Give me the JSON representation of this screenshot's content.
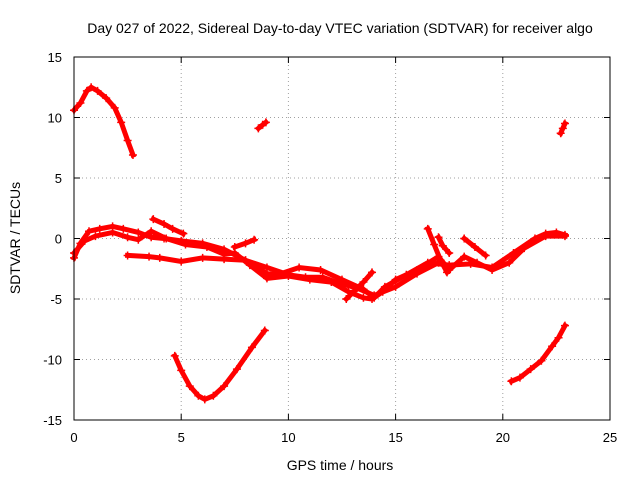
{
  "chart_data": {
    "type": "scatter",
    "title": "Day 027 of 2022, Sidereal Day-to-day VTEC variation (SDTVAR) for receiver algo",
    "xlabel": "GPS time / hours",
    "ylabel": "SDTVAR / TECUs",
    "xlim": [
      0,
      25
    ],
    "ylim": [
      -15,
      15
    ],
    "xticks": [
      0,
      5,
      10,
      15,
      20,
      25
    ],
    "yticks": [
      -15,
      -10,
      -5,
      0,
      5,
      10,
      15
    ],
    "grid": true,
    "marker": "plus",
    "color": "#ff0000",
    "series": [
      {
        "name": "arc-top-left",
        "points": [
          [
            0.0,
            10.6
          ],
          [
            0.3,
            11.2
          ],
          [
            0.6,
            12.2
          ],
          [
            0.8,
            12.5
          ],
          [
            1.1,
            12.2
          ],
          [
            1.5,
            11.6
          ],
          [
            1.9,
            10.8
          ],
          [
            2.2,
            9.6
          ],
          [
            2.5,
            8.1
          ],
          [
            2.75,
            6.9
          ]
        ]
      },
      {
        "name": "short-top-mid",
        "points": [
          [
            8.6,
            9.1
          ],
          [
            8.8,
            9.4
          ],
          [
            8.95,
            9.6
          ]
        ]
      },
      {
        "name": "short-top-right",
        "points": [
          [
            22.7,
            8.7
          ],
          [
            22.8,
            9.1
          ],
          [
            22.9,
            9.5
          ]
        ]
      },
      {
        "name": "dip-mid",
        "points": [
          [
            4.7,
            -9.7
          ],
          [
            5.0,
            -10.9
          ],
          [
            5.4,
            -12.2
          ],
          [
            5.8,
            -13.0
          ],
          [
            6.1,
            -13.3
          ],
          [
            6.5,
            -13.0
          ],
          [
            7.0,
            -12.2
          ],
          [
            7.6,
            -10.8
          ],
          [
            8.3,
            -9.0
          ],
          [
            8.9,
            -7.6
          ]
        ]
      },
      {
        "name": "rise-right",
        "points": [
          [
            20.4,
            -11.8
          ],
          [
            20.8,
            -11.5
          ],
          [
            21.3,
            -10.8
          ],
          [
            21.8,
            -10.1
          ],
          [
            22.3,
            -8.9
          ],
          [
            22.6,
            -8.2
          ],
          [
            22.9,
            -7.2
          ]
        ]
      },
      {
        "name": "band-upper",
        "points": [
          [
            0.0,
            -1.6
          ],
          [
            0.3,
            -0.4
          ],
          [
            0.7,
            0.6
          ],
          [
            1.2,
            0.8
          ],
          [
            1.8,
            1.0
          ],
          [
            2.3,
            0.8
          ],
          [
            3.0,
            0.5
          ],
          [
            3.6,
            0.1
          ],
          [
            4.2,
            0.0
          ],
          [
            5.0,
            -0.2
          ],
          [
            6.0,
            -0.4
          ],
          [
            7.0,
            -0.9
          ],
          [
            8.0,
            -1.8
          ],
          [
            9.0,
            -2.9
          ],
          [
            9.5,
            -3.0
          ],
          [
            10.5,
            -2.4
          ],
          [
            11.5,
            -2.6
          ],
          [
            12.5,
            -3.4
          ],
          [
            13.5,
            -4.2
          ],
          [
            14.0,
            -4.9
          ],
          [
            14.5,
            -4.0
          ],
          [
            15.5,
            -3.0
          ],
          [
            16.5,
            -2.0
          ],
          [
            17.5,
            -2.2
          ],
          [
            18.5,
            -2.1
          ],
          [
            19.5,
            -2.4
          ],
          [
            20.5,
            -1.2
          ],
          [
            21.5,
            0.0
          ],
          [
            22.0,
            0.4
          ],
          [
            22.5,
            0.5
          ],
          [
            22.9,
            0.3
          ]
        ]
      },
      {
        "name": "band-lower",
        "points": [
          [
            0.0,
            -1.2
          ],
          [
            0.5,
            -0.2
          ],
          [
            1.0,
            0.2
          ],
          [
            1.8,
            0.5
          ],
          [
            2.5,
            0.1
          ],
          [
            3.0,
            -0.1
          ],
          [
            3.6,
            0.6
          ],
          [
            4.3,
            0.0
          ],
          [
            5.2,
            -0.5
          ],
          [
            6.2,
            -0.7
          ],
          [
            7.0,
            -1.3
          ],
          [
            7.5,
            -1.2
          ],
          [
            8.2,
            -2.2
          ],
          [
            9.0,
            -3.3
          ],
          [
            10.0,
            -3.1
          ],
          [
            11.0,
            -3.4
          ],
          [
            12.0,
            -3.6
          ],
          [
            12.8,
            -4.4
          ],
          [
            13.5,
            -4.9
          ],
          [
            13.9,
            -5.0
          ],
          [
            14.4,
            -4.4
          ],
          [
            15.0,
            -3.4
          ],
          [
            16.0,
            -2.6
          ],
          [
            17.0,
            -1.5
          ],
          [
            17.5,
            -2.6
          ],
          [
            18.2,
            -1.5
          ],
          [
            18.8,
            -2.0
          ],
          [
            19.5,
            -2.6
          ],
          [
            20.3,
            -2.0
          ],
          [
            21.0,
            -0.8
          ],
          [
            22.0,
            0.2
          ],
          [
            22.9,
            0.2
          ]
        ]
      },
      {
        "name": "band-third",
        "points": [
          [
            2.5,
            -1.4
          ],
          [
            3.5,
            -1.5
          ],
          [
            4.0,
            -1.6
          ],
          [
            5.0,
            -1.9
          ],
          [
            6.0,
            -1.6
          ],
          [
            7.0,
            -1.7
          ],
          [
            8.0,
            -1.8
          ],
          [
            9.0,
            -2.4
          ],
          [
            10.0,
            -3.0
          ],
          [
            10.8,
            -3.2
          ],
          [
            11.6,
            -3.2
          ],
          [
            12.4,
            -3.7
          ],
          [
            13.2,
            -4.1
          ],
          [
            14.0,
            -4.7
          ],
          [
            15.0,
            -4.0
          ],
          [
            16.0,
            -2.9
          ],
          [
            17.0,
            -2.0
          ]
        ]
      },
      {
        "name": "spike-a",
        "points": [
          [
            3.7,
            1.6
          ],
          [
            4.2,
            1.2
          ],
          [
            4.6,
            0.8
          ],
          [
            5.1,
            0.4
          ]
        ]
      },
      {
        "name": "spike-b",
        "points": [
          [
            7.5,
            -0.7
          ],
          [
            8.0,
            -0.4
          ],
          [
            8.4,
            -0.1
          ]
        ]
      },
      {
        "name": "spike-c",
        "points": [
          [
            12.7,
            -5.0
          ],
          [
            13.1,
            -4.3
          ],
          [
            13.5,
            -3.6
          ],
          [
            13.9,
            -2.8
          ]
        ]
      },
      {
        "name": "spike-d",
        "points": [
          [
            16.5,
            0.8
          ],
          [
            16.8,
            -0.5
          ],
          [
            17.1,
            -1.8
          ],
          [
            17.4,
            -2.8
          ]
        ]
      },
      {
        "name": "spike-e",
        "points": [
          [
            17.0,
            0.1
          ],
          [
            17.2,
            -0.6
          ],
          [
            17.5,
            -1.2
          ]
        ]
      },
      {
        "name": "spike-f",
        "points": [
          [
            18.2,
            0.0
          ],
          [
            18.7,
            -0.7
          ],
          [
            19.2,
            -1.4
          ]
        ]
      }
    ]
  }
}
